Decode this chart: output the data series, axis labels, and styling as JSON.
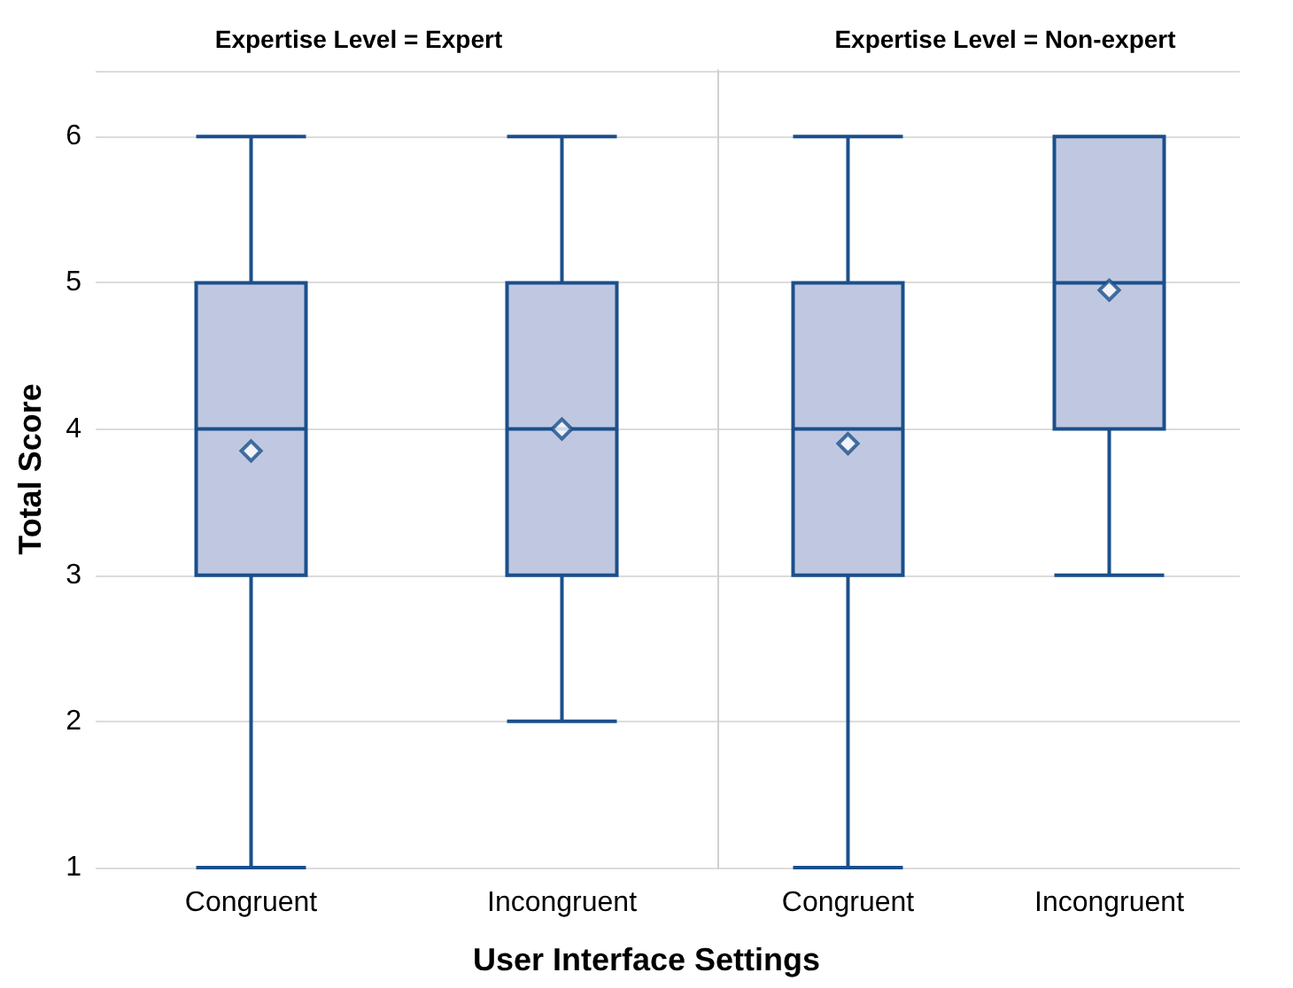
{
  "chart_data": [
    {
      "type": "box",
      "title": "Expertise Level = Expert",
      "xlabel": "User Interface Settings",
      "ylabel": "Total Score",
      "categories": [
        "Congruent",
        "Incongruent"
      ],
      "color": "#bfc8e0",
      "marker": "diamond",
      "ylim": [
        1,
        6.45
      ],
      "yticks": [
        1,
        2,
        3,
        4,
        5,
        6
      ],
      "grid": "y",
      "boxes": [
        {
          "low": 1,
          "q1": 3,
          "median": 4,
          "q3": 5,
          "high": 6,
          "mean": 3.85
        },
        {
          "low": 2,
          "q1": 3,
          "median": 4,
          "q3": 5,
          "high": 6,
          "mean": 4.0
        }
      ]
    },
    {
      "type": "box",
      "title": "Expertise Level = Non-expert",
      "categories": [
        "Congruent",
        "Incongruent"
      ],
      "color": "#bfc8e0",
      "marker": "diamond",
      "ylim": [
        1,
        6.45
      ],
      "yticks": [
        1,
        2,
        3,
        4,
        5,
        6
      ],
      "grid": "y",
      "tick_labels": "x",
      "boxes": [
        {
          "low": 1,
          "q1": 3,
          "median": 4,
          "q3": 5,
          "high": 6,
          "mean": 3.9
        },
        {
          "low": 3,
          "q1": 4,
          "median": 5,
          "q3": 6,
          "high": 6,
          "mean": 4.95
        }
      ]
    }
  ]
}
